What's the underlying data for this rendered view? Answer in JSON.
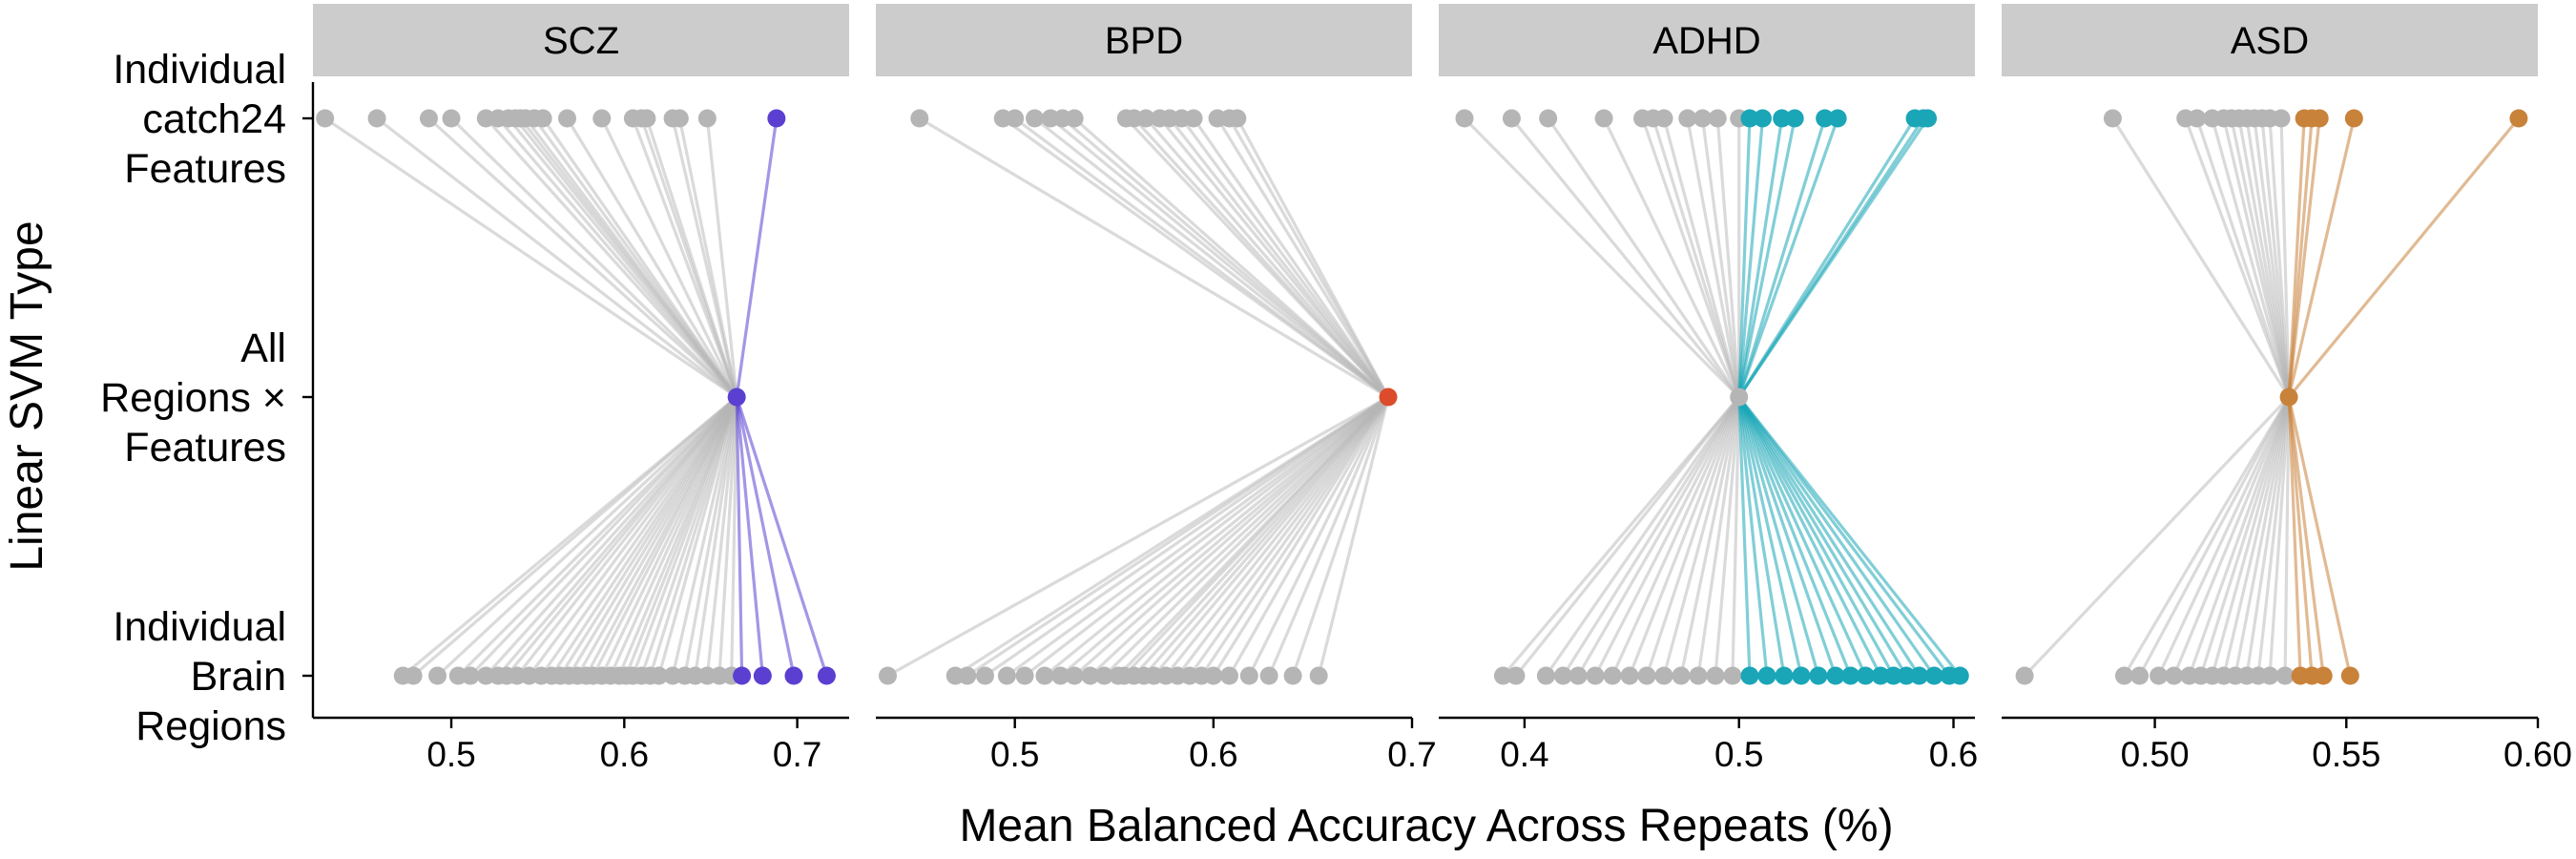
{
  "chart_data": {
    "type": "line",
    "xlabel": "Mean Balanced Accuracy Across Repeats (%)",
    "ylabel": "Linear SVM Type",
    "y_categories": [
      [
        "Individual",
        "catch24",
        "Features"
      ],
      [
        "All",
        "Regions ×",
        "Features"
      ],
      [
        "Individual",
        "Brain",
        "Regions"
      ]
    ],
    "colors": {
      "below_reference": "#b5b5b5",
      "SCZ": "#5a3fd1",
      "BPD": "#dc4c2c",
      "ADHD": "#1aa6b7",
      "ASD": "#c8823a",
      "strip_background": "#cccccc"
    },
    "panels": [
      {
        "name": "SCZ",
        "xlim": [
          0.42,
          0.73
        ],
        "xticks": [
          "0.5",
          "0.6",
          "0.7"
        ],
        "reference": 0.665,
        "reference_highlight": true,
        "catch24_features": [
          0.427,
          0.457,
          0.487,
          0.5,
          0.52,
          0.527,
          0.533,
          0.537,
          0.54,
          0.543,
          0.548,
          0.553,
          0.567,
          0.587,
          0.605,
          0.61,
          0.613,
          0.628,
          0.632,
          0.648,
          0.688
        ],
        "brain_regions": [
          0.472,
          0.478,
          0.492,
          0.504,
          0.511,
          0.52,
          0.527,
          0.532,
          0.538,
          0.545,
          0.552,
          0.558,
          0.563,
          0.568,
          0.573,
          0.578,
          0.582,
          0.587,
          0.592,
          0.597,
          0.601,
          0.605,
          0.61,
          0.615,
          0.62,
          0.628,
          0.635,
          0.641,
          0.648,
          0.655,
          0.662,
          0.668,
          0.68,
          0.698,
          0.717
        ]
      },
      {
        "name": "BPD",
        "xlim": [
          0.43,
          0.7
        ],
        "xticks": [
          "0.5",
          "0.6",
          "0.7"
        ],
        "reference": 0.688,
        "reference_highlight": true,
        "catch24_features": [
          0.452,
          0.494,
          0.5,
          0.51,
          0.518,
          0.524,
          0.53,
          0.556,
          0.56,
          0.566,
          0.573,
          0.578,
          0.584,
          0.59,
          0.602,
          0.608,
          0.612
        ],
        "brain_regions": [
          0.436,
          0.47,
          0.476,
          0.485,
          0.496,
          0.505,
          0.515,
          0.523,
          0.53,
          0.538,
          0.545,
          0.552,
          0.555,
          0.56,
          0.565,
          0.57,
          0.576,
          0.582,
          0.588,
          0.594,
          0.6,
          0.608,
          0.618,
          0.628,
          0.64,
          0.653
        ]
      },
      {
        "name": "ADHD",
        "xlim": [
          0.36,
          0.61
        ],
        "xticks": [
          "0.4",
          "0.5",
          "0.6"
        ],
        "reference": 0.5,
        "reference_highlight": false,
        "catch24_features": [
          0.372,
          0.394,
          0.411,
          0.437,
          0.455,
          0.46,
          0.465,
          0.476,
          0.483,
          0.49,
          0.5,
          0.505,
          0.511,
          0.52,
          0.526,
          0.54,
          0.546,
          0.582,
          0.586,
          0.588
        ],
        "brain_regions": [
          0.39,
          0.396,
          0.41,
          0.418,
          0.425,
          0.433,
          0.441,
          0.449,
          0.457,
          0.465,
          0.473,
          0.481,
          0.489,
          0.497,
          0.505,
          0.513,
          0.521,
          0.529,
          0.537,
          0.545,
          0.552,
          0.559,
          0.566,
          0.572,
          0.578,
          0.584,
          0.591,
          0.598,
          0.603
        ]
      },
      {
        "name": "ASD",
        "xlim": [
          0.46,
          0.6
        ],
        "xticks": [
          "0.50",
          "0.55",
          "0.60"
        ],
        "reference": 0.535,
        "reference_highlight": true,
        "catch24_features": [
          0.489,
          0.508,
          0.511,
          0.515,
          0.518,
          0.52,
          0.522,
          0.524,
          0.526,
          0.528,
          0.53,
          0.533,
          0.539,
          0.541,
          0.543,
          0.552,
          0.595
        ],
        "brain_regions": [
          0.466,
          0.492,
          0.496,
          0.501,
          0.505,
          0.509,
          0.512,
          0.515,
          0.518,
          0.521,
          0.524,
          0.527,
          0.53,
          0.534,
          0.538,
          0.541,
          0.544,
          0.551
        ]
      }
    ]
  }
}
